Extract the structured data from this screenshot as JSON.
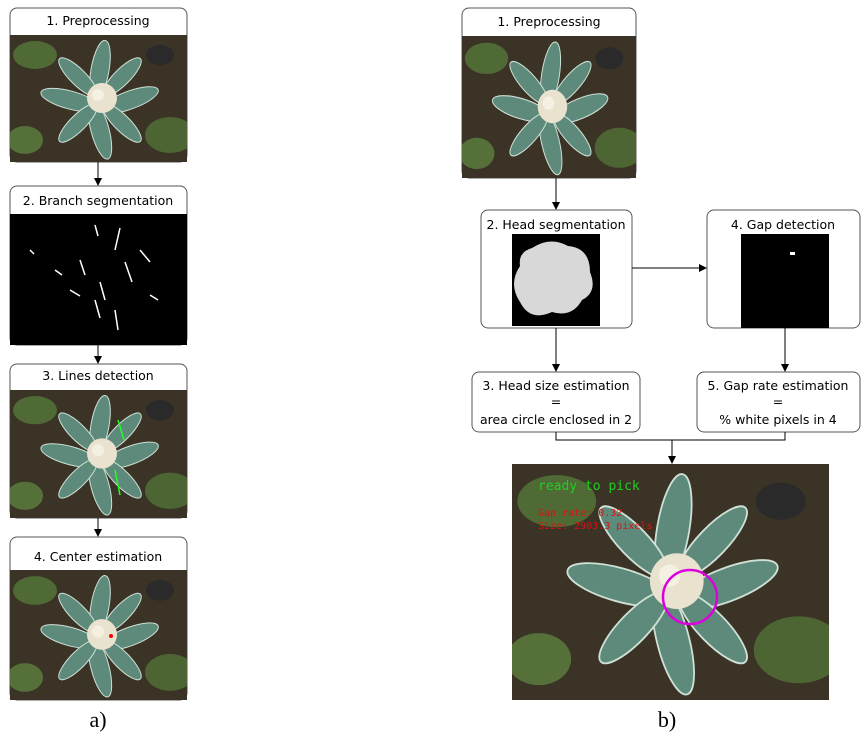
{
  "panel_a": {
    "steps": [
      "1. Preprocessing",
      "2. Branch segmentation",
      "3. Lines detection",
      "4. Center estimation"
    ],
    "label": "a)"
  },
  "panel_b": {
    "preprocessing": "1. Preprocessing",
    "head_segmentation": "2. Head segmentation",
    "gap_detection": "4. Gap detection",
    "head_size": {
      "title": "3. Head size estimation",
      "equals": "=",
      "formula": "area circle enclosed in 2"
    },
    "gap_rate": {
      "title": "5. Gap rate estimation",
      "equals": "=",
      "formula": "% white pixels in 4"
    },
    "result": {
      "status": "ready to pick",
      "gap_rate": "Gap rate: 0.32",
      "size": "Size: 2903.3 pixels"
    },
    "label": "b)"
  }
}
